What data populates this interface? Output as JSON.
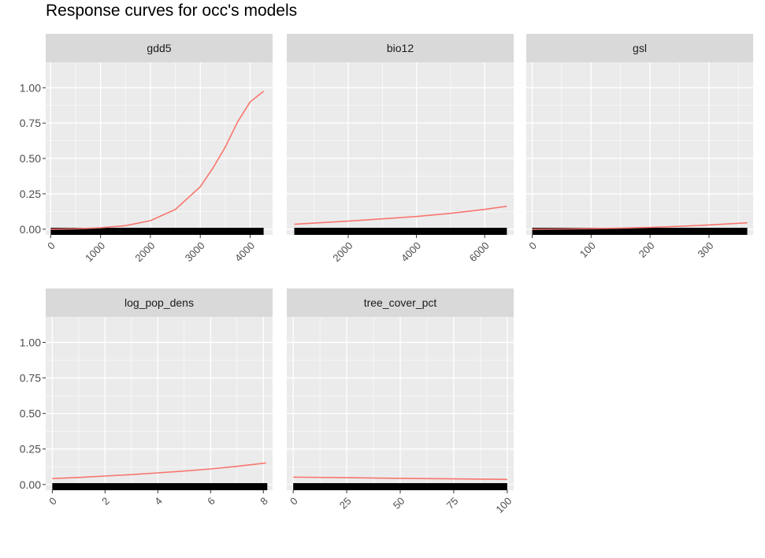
{
  "chart_data": {
    "type": "line",
    "title": "Response curves for occ's models",
    "y_ticks": [
      "0.00",
      "0.25",
      "0.50",
      "0.75",
      "1.00"
    ],
    "y_tick_values": [
      0,
      0.25,
      0.5,
      0.75,
      1.0
    ],
    "ylim": [
      -0.04,
      1.18
    ],
    "line_color": "#F8766D",
    "rug_color": "#000000",
    "panel_background": "#EBEBEB",
    "strip_background": "#D9D9D9",
    "grid_color": "#FFFFFF",
    "facets": [
      {
        "name": "gdd5",
        "xlim": [
          -100,
          4450
        ],
        "x_ticks": [
          "0",
          "1000",
          "2000",
          "3000",
          "4000"
        ],
        "x_tick_values": [
          0,
          1000,
          2000,
          3000,
          4000
        ],
        "rug_range": [
          0,
          4270
        ],
        "x": [
          0,
          500,
          1000,
          1500,
          2000,
          2500,
          3000,
          3250,
          3500,
          3750,
          4000,
          4270
        ],
        "y": [
          0.0,
          0.003,
          0.01,
          0.025,
          0.06,
          0.14,
          0.3,
          0.43,
          0.58,
          0.76,
          0.9,
          0.975
        ]
      },
      {
        "name": "bio12",
        "xlim": [
          200,
          6850
        ],
        "x_ticks": [
          "2000",
          "4000",
          "6000"
        ],
        "x_tick_values": [
          2000,
          4000,
          6000
        ],
        "rug_range": [
          420,
          6650
        ],
        "x": [
          420,
          1000,
          2000,
          3000,
          4000,
          5000,
          6000,
          6650
        ],
        "y": [
          0.035,
          0.043,
          0.057,
          0.073,
          0.09,
          0.112,
          0.14,
          0.162
        ]
      },
      {
        "name": "gsl",
        "xlim": [
          -10,
          375
        ],
        "x_ticks": [
          "0",
          "100",
          "200",
          "300"
        ],
        "x_tick_values": [
          0,
          100,
          200,
          300
        ],
        "rug_range": [
          0,
          365
        ],
        "x": [
          0,
          50,
          100,
          150,
          200,
          250,
          300,
          365
        ],
        "y": [
          0.0,
          0.002,
          0.004,
          0.008,
          0.013,
          0.02,
          0.03,
          0.045
        ]
      },
      {
        "name": "log_pop_dens",
        "xlim": [
          -0.25,
          8.35
        ],
        "x_ticks": [
          "0",
          "2",
          "4",
          "6",
          "8"
        ],
        "x_tick_values": [
          0,
          2,
          4,
          6,
          8
        ],
        "rug_range": [
          0,
          8.15
        ],
        "x": [
          0,
          1,
          2,
          3,
          4,
          5,
          6,
          7,
          8.1
        ],
        "y": [
          0.042,
          0.05,
          0.06,
          0.07,
          0.082,
          0.095,
          0.11,
          0.128,
          0.152
        ]
      },
      {
        "name": "tree_cover_pct",
        "xlim": [
          -3,
          103
        ],
        "x_ticks": [
          "0",
          "25",
          "50",
          "75",
          "100"
        ],
        "x_tick_values": [
          0,
          25,
          50,
          75,
          100
        ],
        "rug_range": [
          0,
          100
        ],
        "x": [
          0,
          25,
          50,
          75,
          100
        ],
        "y": [
          0.052,
          0.048,
          0.044,
          0.04,
          0.036
        ]
      }
    ]
  }
}
